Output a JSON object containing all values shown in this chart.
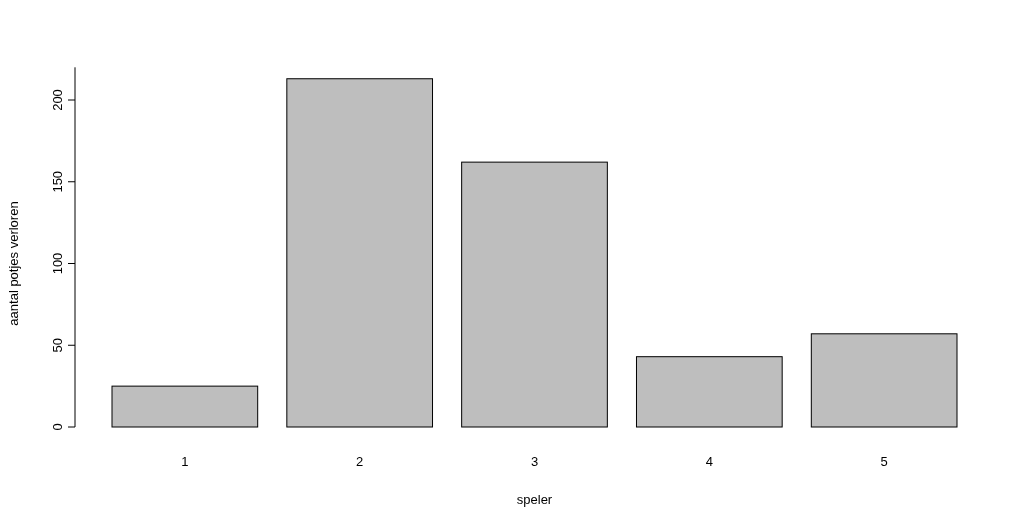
{
  "chart_data": {
    "type": "bar",
    "xlabel": "speler",
    "ylabel": "aantal potjes verloren",
    "categories": [
      "1",
      "2",
      "3",
      "4",
      "5"
    ],
    "values": [
      25,
      213,
      162,
      43,
      57
    ],
    "color": "#bebebe",
    "ylim": [
      0,
      220
    ],
    "yticks": [
      0,
      50,
      100,
      150,
      200
    ],
    "grid": false
  }
}
